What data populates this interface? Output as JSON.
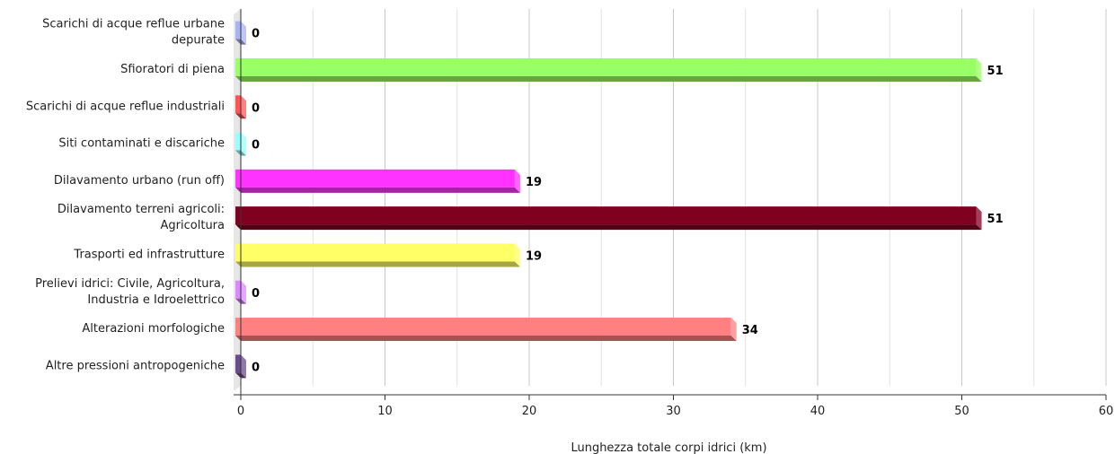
{
  "chart_data": {
    "type": "bar",
    "orientation": "horizontal",
    "categories": [
      [
        "Scarichi di acque reflue urbane",
        "depurate"
      ],
      [
        "Sfioratori di piena"
      ],
      [
        "Scarichi di acque reflue industriali"
      ],
      [
        "Siti contaminati e discariche"
      ],
      [
        "Dilavamento urbano (run off)"
      ],
      [
        "Dilavamento terreni agricoli:",
        "Agricoltura"
      ],
      [
        "Trasporti ed infrastrutture"
      ],
      [
        "Prelievi idrici: Civile, Agricoltura,",
        "Industria e Idroelettrico"
      ],
      [
        "Alterazioni morfologiche"
      ],
      [
        "Altre pressioni antropogeniche"
      ]
    ],
    "values": [
      0,
      51,
      0,
      0,
      19,
      51,
      19,
      0,
      34,
      0
    ],
    "value_labels": [
      "0",
      "51",
      "0",
      "0",
      "19",
      "51",
      "19",
      "0",
      "34",
      "0"
    ],
    "colors": [
      "#a9b4f5",
      "#99ff66",
      "#ff5555",
      "#99ffff",
      "#ff33ff",
      "#800020",
      "#ffff66",
      "#dd88ff",
      "#ff8080",
      "#6b4c8f"
    ],
    "xlabel": "Lunghezza totale corpi idrici (km)",
    "xlim": [
      0,
      60
    ],
    "xticks": [
      0,
      10,
      20,
      30,
      40,
      50,
      60
    ],
    "tick_labels": [
      "0",
      "10",
      "20",
      "30",
      "40",
      "50",
      "60"
    ],
    "grid": true,
    "legend": "none"
  }
}
